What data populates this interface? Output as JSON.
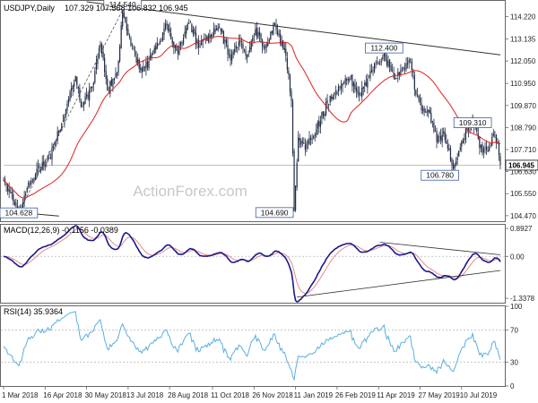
{
  "chart_data": {
    "type": "candlestick",
    "symbol_label": "USDJPY,Daily",
    "ohlc_label": "107.329 107.568 106.832 106.945",
    "last_price_label": "106.945",
    "watermark": "ActionForex.com",
    "x_dates": [
      "1 Mar 2018",
      "16 Apr 2018",
      "30 May 2018",
      "13 Jul 2018",
      "28 Aug 2018",
      "11 Oct 2018",
      "26 Nov 2018",
      "11 Jan 2019",
      "26 Feb 2019",
      "11 Apr 2019",
      "27 May 2019",
      "10 Jul 2019"
    ],
    "price_ticks": [
      "114.220",
      "113.135",
      "112.050",
      "110.950",
      "109.870",
      "108.790",
      "107.710",
      "106.630",
      "105.550",
      "104.470"
    ],
    "price_ylim": [
      104.2,
      114.95
    ],
    "annotations": [
      {
        "label": "114.540",
        "date_index": 86,
        "value": 114.54
      },
      {
        "label": "112.400",
        "date_index": 275,
        "value": 112.4
      },
      {
        "label": "109.310",
        "date_index": 339,
        "value": 109.31
      },
      {
        "label": "106.780",
        "date_index": 325,
        "value": 106.78
      },
      {
        "label": "104.690",
        "date_index": 210,
        "value": 104.69
      },
      {
        "label": "104.628",
        "date_index": 11,
        "value": 104.63
      }
    ],
    "macd": {
      "label": "MACD(12,26,9) -0.1156 -0.0389",
      "ticks": [
        "0.8927",
        "0.00",
        "-1.3378"
      ],
      "ylim": [
        -1.45,
        0.98
      ]
    },
    "rsi": {
      "label": "RSI(14) 35.9364",
      "ticks": [
        "100",
        "70",
        "30",
        "0"
      ],
      "ylim": [
        0,
        100
      ]
    },
    "colors": {
      "candle": "#1f2a44",
      "ma": "#e02020",
      "trendline": "#333333",
      "macd_line": "#1a1a8c",
      "signal_line": "#e08080",
      "rsi_line": "#5aaee0",
      "grid_dotted": "#bbbbbb"
    }
  }
}
